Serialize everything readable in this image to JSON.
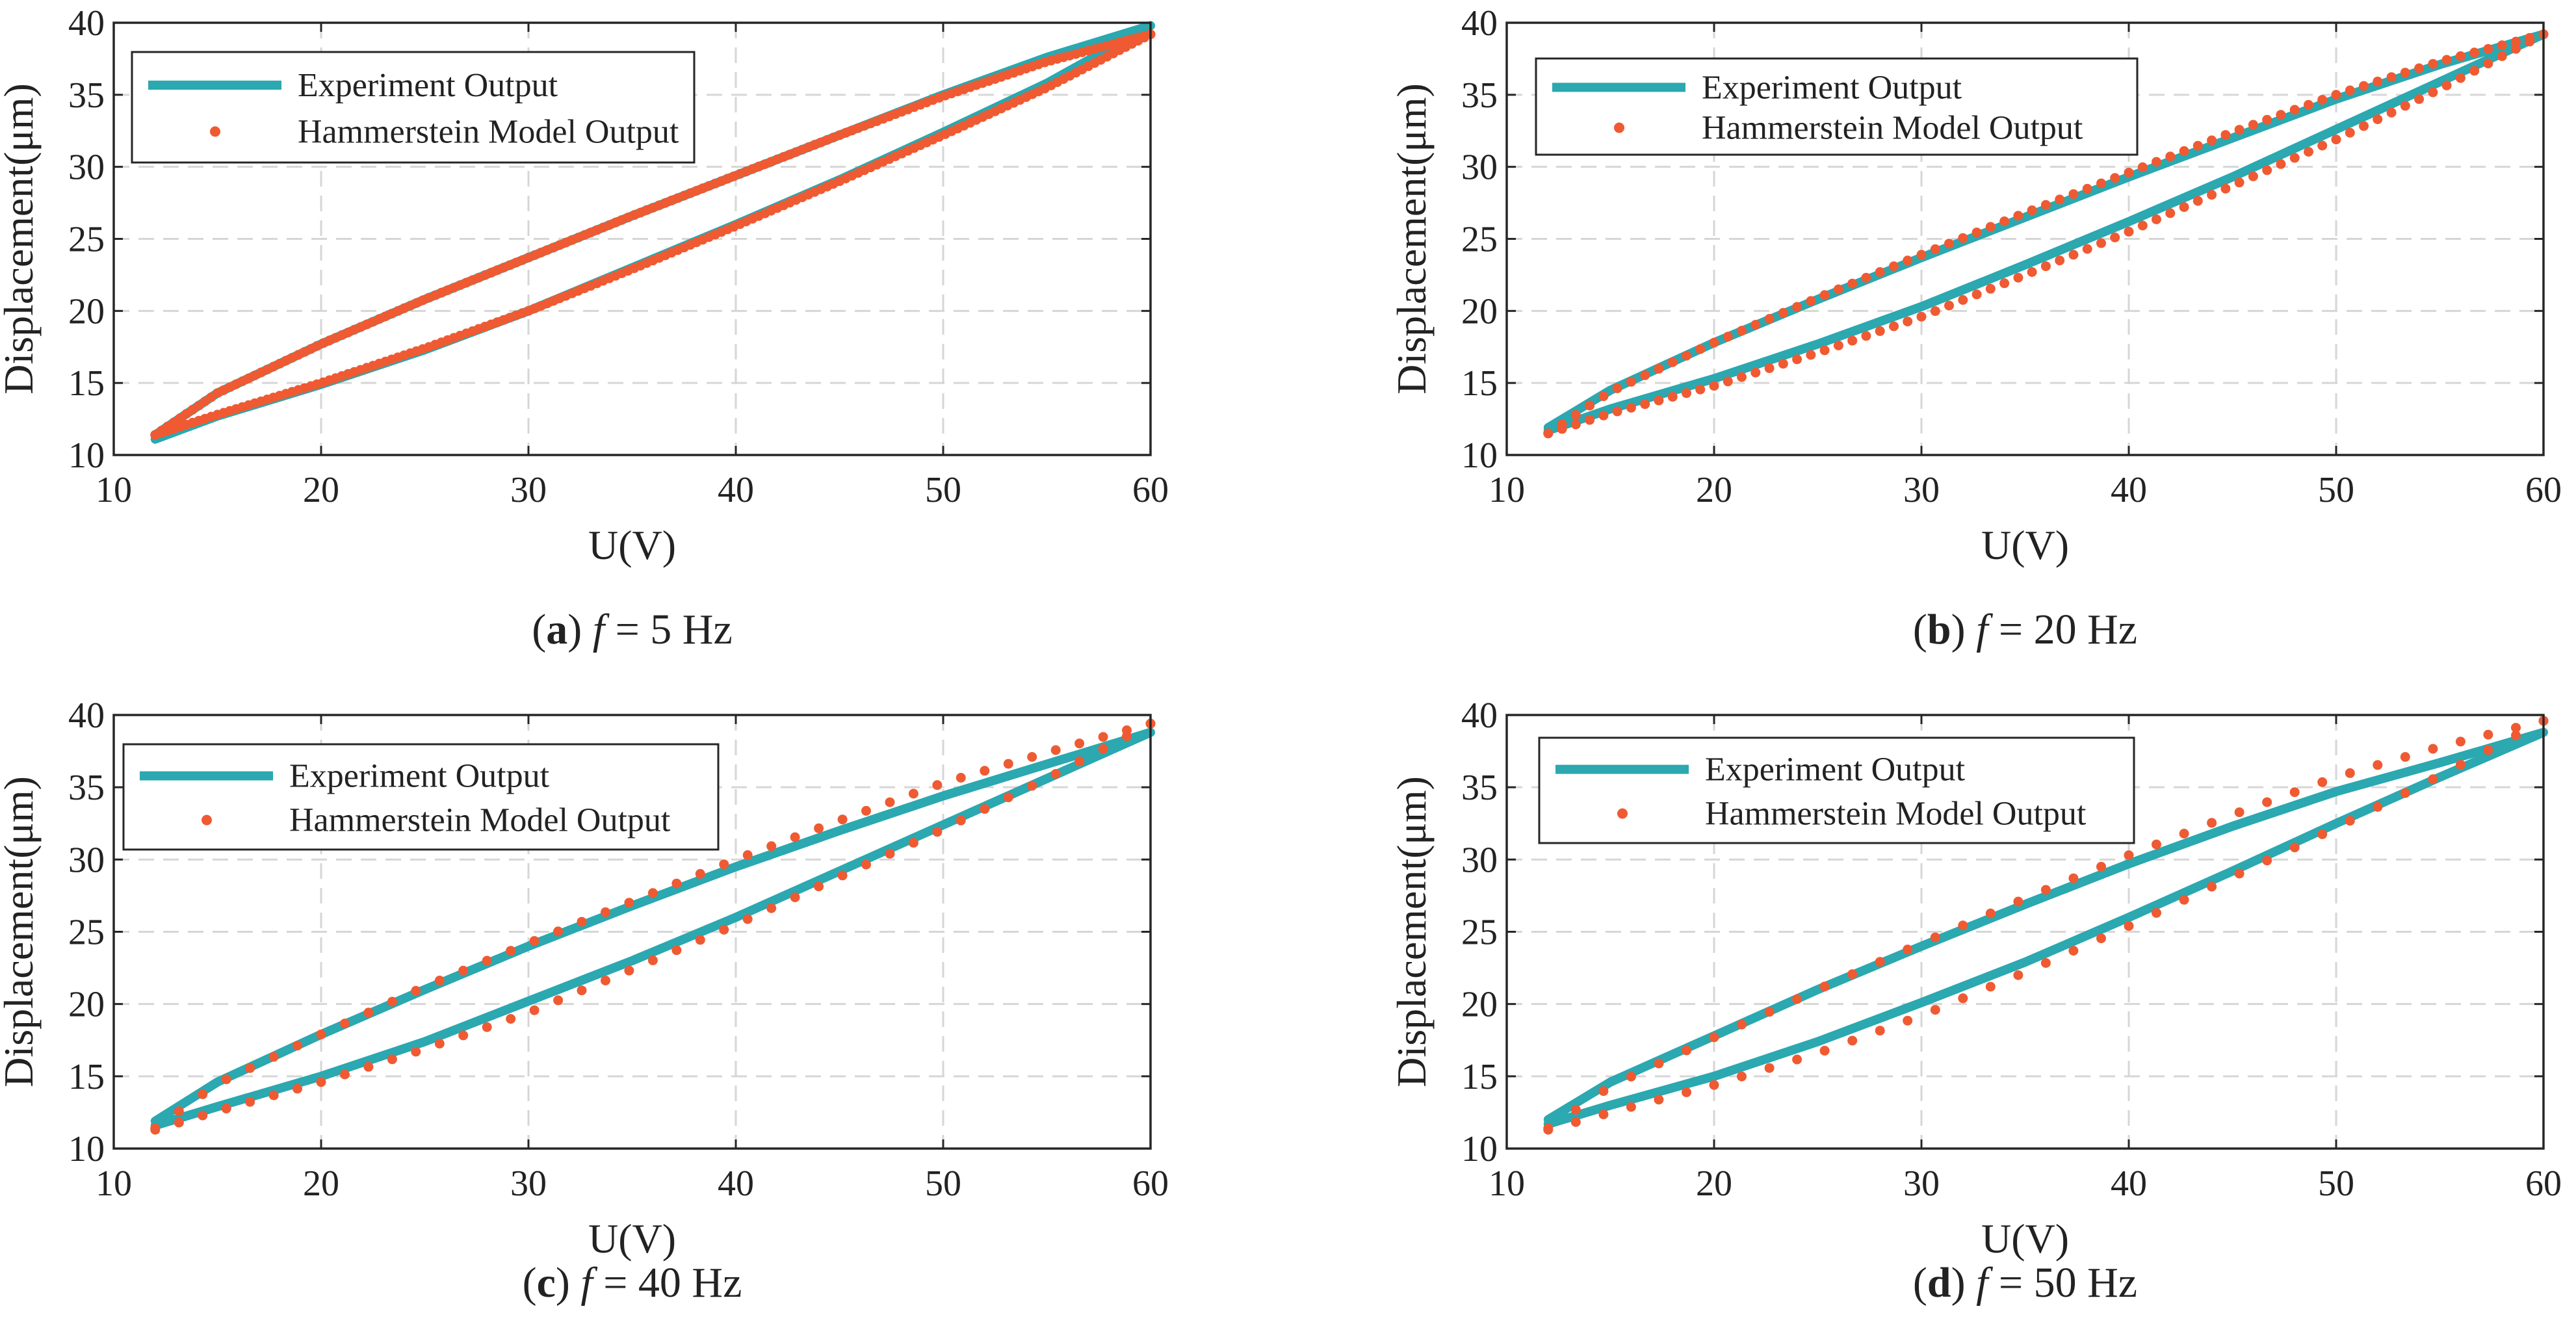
{
  "chart_data": [
    {
      "type": "line",
      "caption": {
        "letter": "a",
        "var": "f",
        "rest": " = 5 Hz"
      },
      "xlabel": "U(V)",
      "ylabel": "Displacement(μm)",
      "xlim": [
        10,
        60
      ],
      "ylim": [
        10,
        40
      ],
      "xticks": [
        10,
        20,
        30,
        40,
        50,
        60
      ],
      "yticks": [
        10,
        15,
        20,
        25,
        30,
        35,
        40
      ],
      "grid": true,
      "legend_position": "top-left",
      "series": [
        {
          "name": "Experiment Output",
          "style": "solid-line",
          "color": "#2ba8b0",
          "ascending": {
            "x": [
              12,
              15,
              20,
              25,
              30,
              35,
              40,
              45,
              50,
              55,
              60
            ],
            "y": [
              11.1,
              12.7,
              14.9,
              17.3,
              20.0,
              23.0,
              26.0,
              29.1,
              32.4,
              35.8,
              39.8
            ]
          },
          "descending": {
            "x": [
              60,
              55,
              50,
              45,
              40,
              35,
              30,
              25,
              20,
              15,
              12
            ],
            "y": [
              39.8,
              37.6,
              35.0,
              32.2,
              29.4,
              26.6,
              23.7,
              20.8,
              17.7,
              14.3,
              11.4
            ]
          }
        },
        {
          "name": "Hammerstein Model Output",
          "style": "dots",
          "color": "#ef5a32",
          "dot_density": 160,
          "ascending": {
            "x": [
              12,
              15,
              20,
              25,
              30,
              35,
              40,
              45,
              50,
              55,
              60
            ],
            "y": [
              11.4,
              12.8,
              15.0,
              17.4,
              20.0,
              22.9,
              25.9,
              29.0,
              32.2,
              35.5,
              39.2
            ]
          },
          "descending": {
            "x": [
              60,
              55,
              50,
              45,
              40,
              35,
              30,
              25,
              20,
              15,
              12
            ],
            "y": [
              39.2,
              37.3,
              34.9,
              32.2,
              29.4,
              26.6,
              23.7,
              20.8,
              17.7,
              14.3,
              11.4
            ]
          }
        }
      ]
    },
    {
      "type": "line",
      "caption": {
        "letter": "b",
        "var": "f",
        "rest": " = 20 Hz"
      },
      "xlabel": "U(V)",
      "ylabel": "Displacement(μm)",
      "xlim": [
        10,
        60
      ],
      "ylim": [
        10,
        40
      ],
      "xticks": [
        10,
        20,
        30,
        40,
        50,
        60
      ],
      "yticks": [
        10,
        15,
        20,
        25,
        30,
        35,
        40
      ],
      "grid": true,
      "legend_position": "top-left",
      "series": [
        {
          "name": "Experiment Output",
          "style": "solid-line",
          "color": "#2ba8b0",
          "ascending": {
            "x": [
              12,
              15,
              20,
              25,
              30,
              35,
              40,
              45,
              50,
              55,
              60
            ],
            "y": [
              11.7,
              13.2,
              15.3,
              17.7,
              20.3,
              23.2,
              26.2,
              29.3,
              32.6,
              35.9,
              39.2
            ]
          },
          "descending": {
            "x": [
              60,
              55,
              50,
              45,
              40,
              35,
              30,
              25,
              20,
              15,
              12
            ],
            "y": [
              39.2,
              37.1,
              34.7,
              32.0,
              29.3,
              26.5,
              23.7,
              20.8,
              17.8,
              14.5,
              11.9
            ]
          }
        },
        {
          "name": "Hammerstein Model Output",
          "style": "dots",
          "color": "#ef5a32",
          "dot_density": 72,
          "ascending": {
            "x": [
              12,
              15,
              20,
              25,
              30,
              35,
              40,
              45,
              50,
              55,
              60
            ],
            "y": [
              11.5,
              12.9,
              14.8,
              17.1,
              19.6,
              22.5,
              25.5,
              28.7,
              31.9,
              35.4,
              39.2
            ]
          },
          "descending": {
            "x": [
              60,
              55,
              50,
              45,
              40,
              35,
              30,
              25,
              20,
              15,
              12
            ],
            "y": [
              39.2,
              37.3,
              35.0,
              32.4,
              29.6,
              26.8,
              23.9,
              20.9,
              17.8,
              14.4,
              11.5
            ]
          }
        }
      ]
    },
    {
      "type": "line",
      "caption": {
        "letter": "c",
        "var": "f",
        "rest": " = 40 Hz"
      },
      "xlabel": "U(V)",
      "ylabel": "Displacement(μm)",
      "xlim": [
        10,
        60
      ],
      "ylim": [
        10,
        40
      ],
      "xticks": [
        10,
        20,
        30,
        40,
        50,
        60
      ],
      "yticks": [
        10,
        15,
        20,
        25,
        30,
        35,
        40
      ],
      "grid": true,
      "legend_position": "top-left",
      "series": [
        {
          "name": "Experiment Output",
          "style": "solid-line",
          "color": "#2ba8b0",
          "ascending": {
            "x": [
              12,
              15,
              20,
              25,
              30,
              35,
              40,
              45,
              50,
              55,
              60
            ],
            "y": [
              11.6,
              12.9,
              15.0,
              17.4,
              20.2,
              23.0,
              26.0,
              29.2,
              32.4,
              35.6,
              38.8
            ]
          },
          "descending": {
            "x": [
              60,
              55,
              50,
              45,
              40,
              35,
              30,
              25,
              20,
              15,
              12
            ],
            "y": [
              38.8,
              36.6,
              34.4,
              32.0,
              29.5,
              26.8,
              24.0,
              21.0,
              17.9,
              14.6,
              11.9
            ]
          }
        },
        {
          "name": "Hammerstein Model Output",
          "style": "dots",
          "color": "#ef5a32",
          "dot_density": 42,
          "ascending": {
            "x": [
              12,
              15,
              20,
              25,
              30,
              35,
              40,
              45,
              50,
              55,
              60
            ],
            "y": [
              11.3,
              12.6,
              14.6,
              16.9,
              19.4,
              22.4,
              25.5,
              28.8,
              32.1,
              35.6,
              39.4
            ]
          },
          "descending": {
            "x": [
              60,
              55,
              50,
              45,
              40,
              35,
              30,
              25,
              20,
              15,
              12
            ],
            "y": [
              39.4,
              37.4,
              35.3,
              32.7,
              30.0,
              27.1,
              24.2,
              21.2,
              17.9,
              14.5,
              11.4
            ]
          }
        }
      ]
    },
    {
      "type": "line",
      "caption": {
        "letter": "d",
        "var": "f",
        "rest": " = 50 Hz"
      },
      "xlabel": "U(V)",
      "ylabel": "Displacement(μm)",
      "xlim": [
        10,
        60
      ],
      "ylim": [
        10,
        40
      ],
      "xticks": [
        10,
        20,
        30,
        40,
        50,
        60
      ],
      "yticks": [
        10,
        15,
        20,
        25,
        30,
        35,
        40
      ],
      "grid": true,
      "legend_position": "top-left",
      "series": [
        {
          "name": "Experiment Output",
          "style": "solid-line",
          "color": "#2ba8b0",
          "ascending": {
            "x": [
              12,
              15,
              20,
              25,
              30,
              35,
              40,
              45,
              50,
              55,
              60
            ],
            "y": [
              11.7,
              13.0,
              15.0,
              17.4,
              20.1,
              22.9,
              26.0,
              29.2,
              32.5,
              35.7,
              38.8
            ]
          },
          "descending": {
            "x": [
              60,
              55,
              50,
              45,
              40,
              35,
              30,
              25,
              20,
              15,
              12
            ],
            "y": [
              38.8,
              36.7,
              34.7,
              32.3,
              29.7,
              26.9,
              24.0,
              21.0,
              17.8,
              14.6,
              12.0
            ]
          }
        },
        {
          "name": "Hammerstein Model Output",
          "style": "dots",
          "color": "#ef5a32",
          "dot_density": 36,
          "ascending": {
            "x": [
              12,
              15,
              20,
              25,
              30,
              35,
              40,
              45,
              50,
              55,
              60
            ],
            "y": [
              11.3,
              12.5,
              14.4,
              16.6,
              19.2,
              22.2,
              25.4,
              28.8,
              32.2,
              35.8,
              39.6
            ]
          },
          "descending": {
            "x": [
              60,
              55,
              50,
              45,
              40,
              35,
              30,
              25,
              20,
              15,
              12
            ],
            "y": [
              39.6,
              37.8,
              35.7,
              33.1,
              30.3,
              27.3,
              24.2,
              21.0,
              17.7,
              14.3,
              11.4
            ]
          }
        }
      ]
    }
  ]
}
